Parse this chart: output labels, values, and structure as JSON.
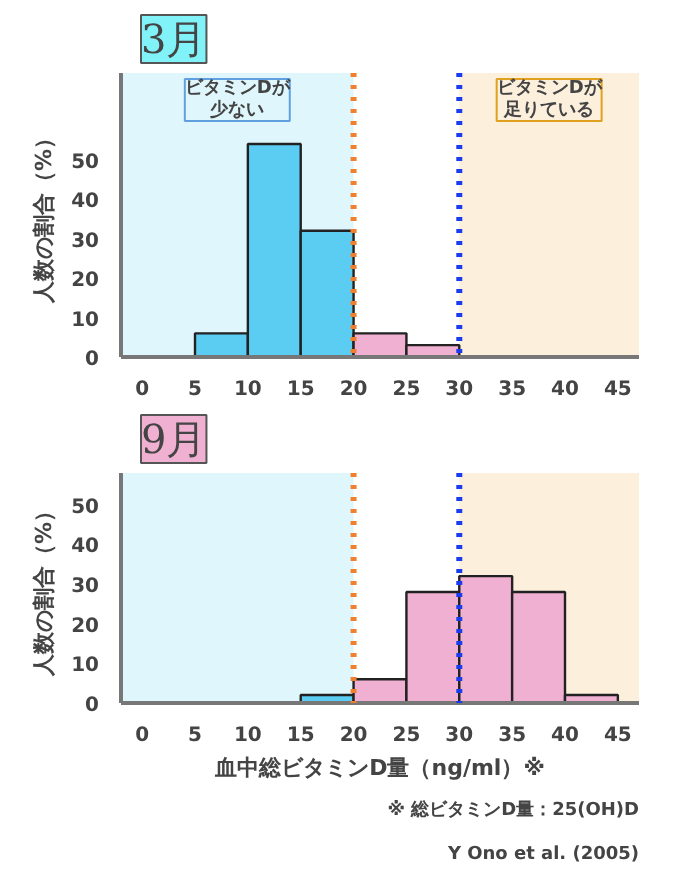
{
  "chart_data": [
    {
      "type": "histogram",
      "title": "3月",
      "ylabel": "人数の割合（%）",
      "bins": [
        0,
        5,
        10,
        15,
        20,
        25,
        30,
        35,
        40,
        45
      ],
      "values": [
        0,
        6,
        54,
        32,
        6,
        3,
        0,
        0,
        0
      ],
      "colors": [
        "#5ccdf2",
        "#5ccdf2",
        "#5ccdf2",
        "#5ccdf2",
        "#f0b0d2",
        "#f0b0d2",
        "#f0b0d2",
        "#f0b0d2",
        "#f0b0d2"
      ],
      "xlim": [
        -2,
        47
      ],
      "xticks": [
        0,
        5,
        10,
        15,
        20,
        25,
        30,
        35,
        40,
        45
      ],
      "ylim": [
        0,
        72
      ],
      "yticks": [
        0,
        10,
        20,
        30,
        40,
        50
      ],
      "bands": [
        {
          "axis": "x",
          "from": -2,
          "to": 20,
          "label": "ビタミンDが少ない",
          "color": "#dff7fc"
        },
        {
          "axis": "x",
          "from": 30,
          "to": 47,
          "label": "ビタミンDが足りている",
          "color": "#fcefdc"
        }
      ],
      "ref_lines": [
        {
          "axis": "x",
          "value": 20,
          "color": "#f08030",
          "line_style": "dotted"
        },
        {
          "axis": "x",
          "value": 30,
          "color": "#1a3cf0",
          "line_style": "dotted"
        }
      ]
    },
    {
      "type": "histogram",
      "title": "9月",
      "ylabel": "人数の割合（%）",
      "xlabel": "血中総ビタミンD量（ng/ml）※",
      "bins": [
        0,
        5,
        10,
        15,
        20,
        25,
        30,
        35,
        40,
        45
      ],
      "values": [
        0,
        0,
        0,
        2,
        6,
        28,
        32,
        28,
        2
      ],
      "colors": [
        "#5ccdf2",
        "#5ccdf2",
        "#5ccdf2",
        "#5ccdf2",
        "#f0b0d2",
        "#f0b0d2",
        "#f0b0d2",
        "#f0b0d2",
        "#f0b0d2"
      ],
      "xlim": [
        -2,
        47
      ],
      "xticks": [
        0,
        5,
        10,
        15,
        20,
        25,
        30,
        35,
        40,
        45
      ],
      "ylim": [
        0,
        58
      ],
      "yticks": [
        0,
        10,
        20,
        30,
        40,
        50
      ],
      "bands": [
        {
          "axis": "x",
          "from": -2,
          "to": 20,
          "color": "#dff7fc"
        },
        {
          "axis": "x",
          "from": 30,
          "to": 47,
          "color": "#fcefdc"
        }
      ],
      "ref_lines": [
        {
          "axis": "x",
          "value": 20,
          "color": "#f08030",
          "line_style": "dotted"
        },
        {
          "axis": "x",
          "value": 30,
          "color": "#1a3cf0",
          "line_style": "dotted"
        }
      ],
      "annotations": [
        "※ 総ビタミンD量：25(OH)D",
        "Y Ono et al. (2005)"
      ]
    }
  ]
}
